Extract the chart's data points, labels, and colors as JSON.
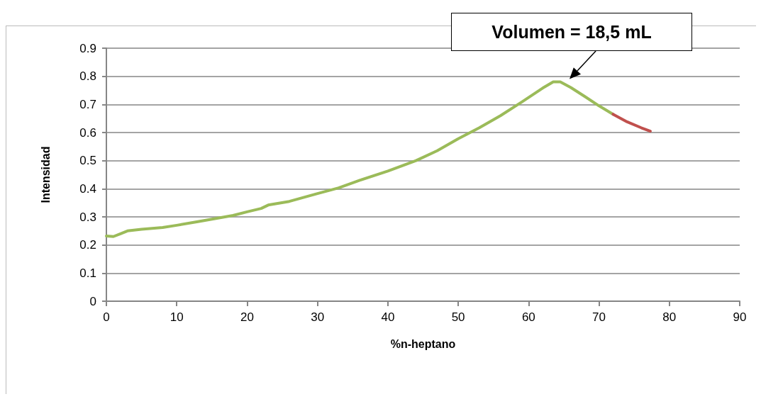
{
  "chart_data": {
    "type": "line",
    "xlabel": "%n-heptano",
    "ylabel": "Intensidad",
    "xlim": [
      0,
      90
    ],
    "xticks": [
      0,
      10,
      20,
      30,
      40,
      50,
      60,
      70,
      80,
      90
    ],
    "ylim": [
      0,
      0.9
    ],
    "yticks": [
      0,
      0.1,
      0.2,
      0.3,
      0.4,
      0.5,
      0.6,
      0.7,
      0.8,
      0.9
    ],
    "grid": "y",
    "marker": "none",
    "line_style": "solid",
    "annotations": [
      {
        "text": "Volumen = 18,5 mL",
        "x": 65,
        "y": 0.78
      }
    ],
    "series": [
      {
        "color": "#9bbb59",
        "x": [
          0,
          1,
          2,
          3,
          5,
          8,
          10,
          13,
          15,
          18,
          20,
          22,
          23,
          26,
          30,
          33,
          36,
          40,
          44,
          47,
          50,
          53,
          56,
          59,
          62,
          63.5,
          64.5,
          66,
          68,
          70,
          72
        ],
        "values": [
          0.232,
          0.23,
          0.24,
          0.25,
          0.256,
          0.262,
          0.27,
          0.283,
          0.292,
          0.305,
          0.318,
          0.33,
          0.342,
          0.355,
          0.383,
          0.403,
          0.43,
          0.463,
          0.5,
          0.535,
          0.578,
          0.617,
          0.66,
          0.708,
          0.758,
          0.78,
          0.78,
          0.76,
          0.728,
          0.695,
          0.665
        ]
      },
      {
        "color": "#c0504d",
        "x": [
          72,
          74,
          76,
          77.3
        ],
        "values": [
          0.665,
          0.638,
          0.617,
          0.605
        ]
      }
    ]
  }
}
